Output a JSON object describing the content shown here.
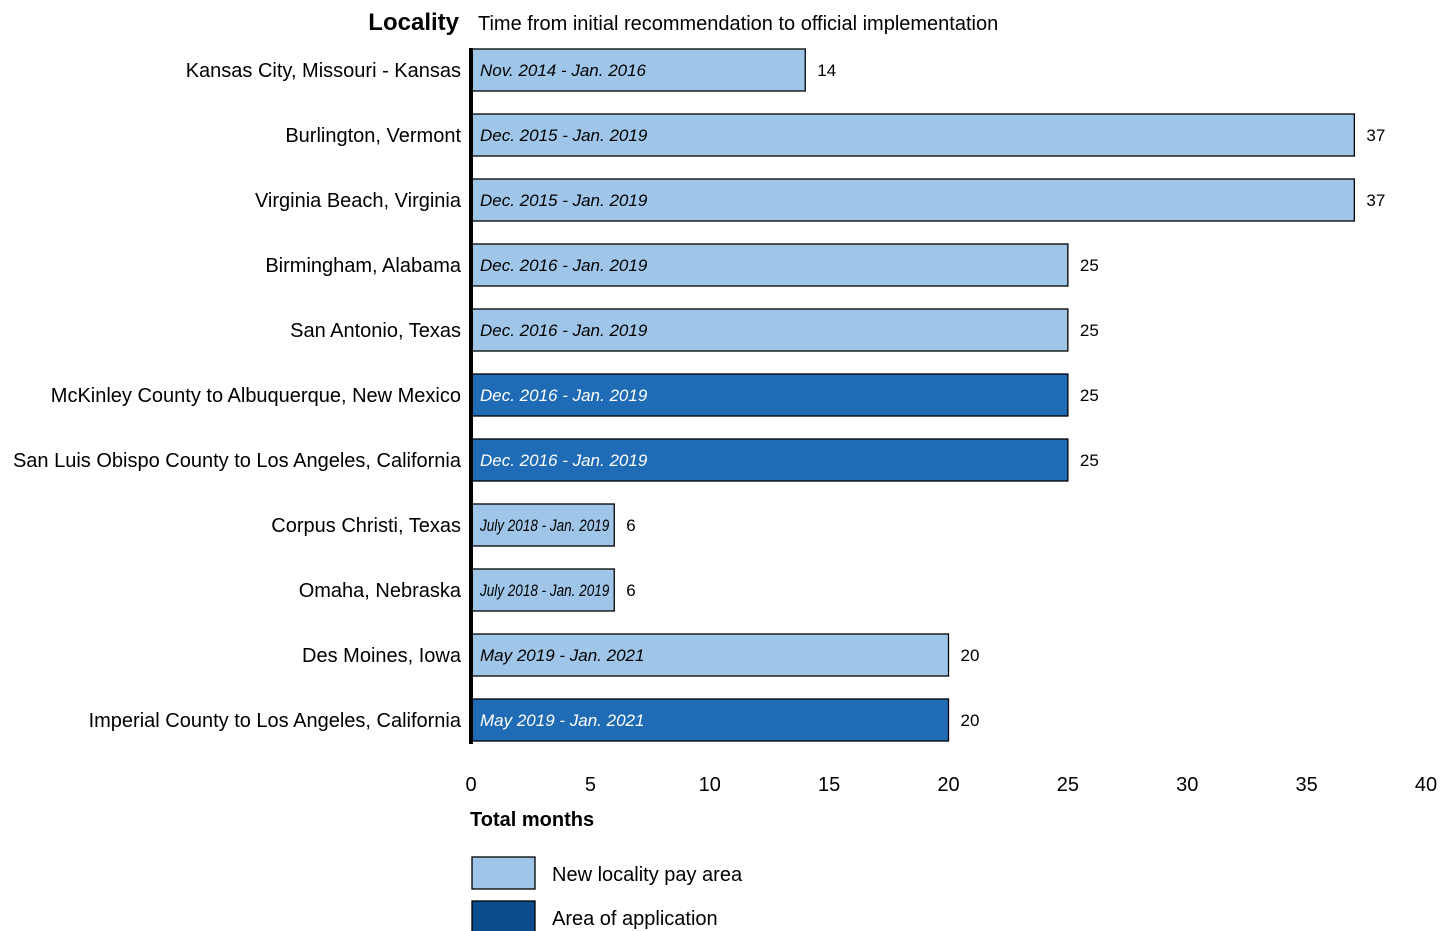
{
  "header": {
    "label_heading": "Locality",
    "bar_heading": "Time from initial recommendation to official implementation"
  },
  "chart_data": {
    "type": "bar",
    "orientation": "horizontal",
    "xlabel": "Total months",
    "xlim": [
      0,
      40
    ],
    "xticks": [
      0,
      5,
      10,
      15,
      20,
      25,
      30,
      35,
      40
    ],
    "grid": false,
    "legend_placement": "bottom-left",
    "categories": [
      "Kansas City, Missouri - Kansas",
      "Burlington, Vermont",
      "Virginia Beach, Virginia",
      "Birmingham, Alabama",
      "San Antonio, Texas",
      "McKinley County to Albuquerque, New Mexico",
      "San Luis Obispo County to Los Angeles, California",
      "Corpus Christi, Texas",
      "Omaha, Nebraska",
      "Des Moines, Iowa",
      "Imperial County to Los Angeles, California"
    ],
    "values": [
      14,
      37,
      37,
      25,
      25,
      25,
      25,
      6,
      6,
      20,
      20
    ],
    "periods": [
      "Nov. 2014 - Jan. 2016",
      "Dec. 2015 - Jan. 2019",
      "Dec. 2015 - Jan. 2019",
      "Dec. 2016 - Jan. 2019",
      "Dec. 2016 - Jan. 2019",
      "Dec. 2016 - Jan. 2019",
      "Dec. 2016 - Jan. 2019",
      "July 2018 - Jan. 2019",
      "July 2018 - Jan. 2019",
      "May 2019 - Jan. 2021",
      "May 2019 - Jan. 2021"
    ],
    "groups": [
      0,
      0,
      0,
      0,
      0,
      1,
      1,
      0,
      0,
      0,
      1
    ],
    "legend": [
      {
        "name": "New locality pay area",
        "color": "#9fc6e8",
        "text_color": "#000000"
      },
      {
        "name": "Area of application",
        "color": "#1f6bb5",
        "text_color": "#ffffff"
      }
    ],
    "legend_swatch_colors": [
      "#9fc6e8",
      "#0b4d8c"
    ]
  }
}
